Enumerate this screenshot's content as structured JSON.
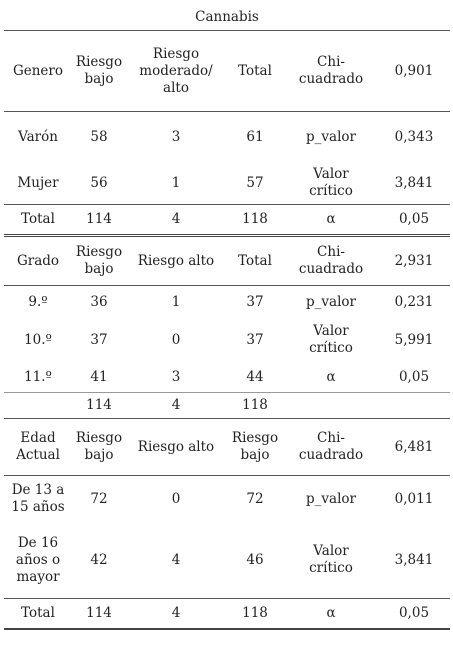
{
  "title": "Cannabis",
  "sections": [
    {
      "header": [
        "Genero",
        "Riesgo\nbajo",
        "Riesgo\nmoderado/\nalto",
        "Total",
        "Chi-\ncuadrado",
        "0,901"
      ],
      "rows": [
        [
          "Varón",
          "58",
          "3",
          "61",
          "p_valor",
          "0,343"
        ],
        [
          "Mujer",
          "56",
          "1",
          "57",
          "Valor\ncrítico",
          "3,841"
        ]
      ],
      "total": [
        "Total",
        "114",
        "4",
        "118",
        "α",
        "0,05"
      ]
    },
    {
      "header": [
        "Grado",
        "Riesgo\nbajo",
        "Riesgo alto",
        "Total",
        "Chi-\ncuadrado",
        "2,931"
      ],
      "rows": [
        [
          "9.º",
          "36",
          "1",
          "37",
          "p_valor",
          "0,231"
        ],
        [
          "10.º",
          "37",
          "0",
          "37",
          "Valor\ncrítico",
          "5,991"
        ],
        [
          "11.º",
          "41",
          "3",
          "44",
          "α",
          "0,05"
        ]
      ],
      "total": [
        "",
        "114",
        "4",
        "118",
        "",
        ""
      ]
    },
    {
      "header": [
        "Edad\nActual",
        "Riesgo\nbajo",
        "Riesgo alto",
        "Riesgo\nbajo",
        "Chi-\ncuadrado",
        "6,481"
      ],
      "rows": [
        [
          "De 13 a\n15 años",
          "72",
          "0",
          "72",
          "p_valor",
          "0,011"
        ],
        [
          "De 16\naños o\nmayor",
          "42",
          "4",
          "46",
          "Valor\ncrítico",
          "3,841"
        ]
      ],
      "total": [
        "Total",
        "114",
        "4",
        "118",
        "α",
        "0,05"
      ]
    }
  ]
}
